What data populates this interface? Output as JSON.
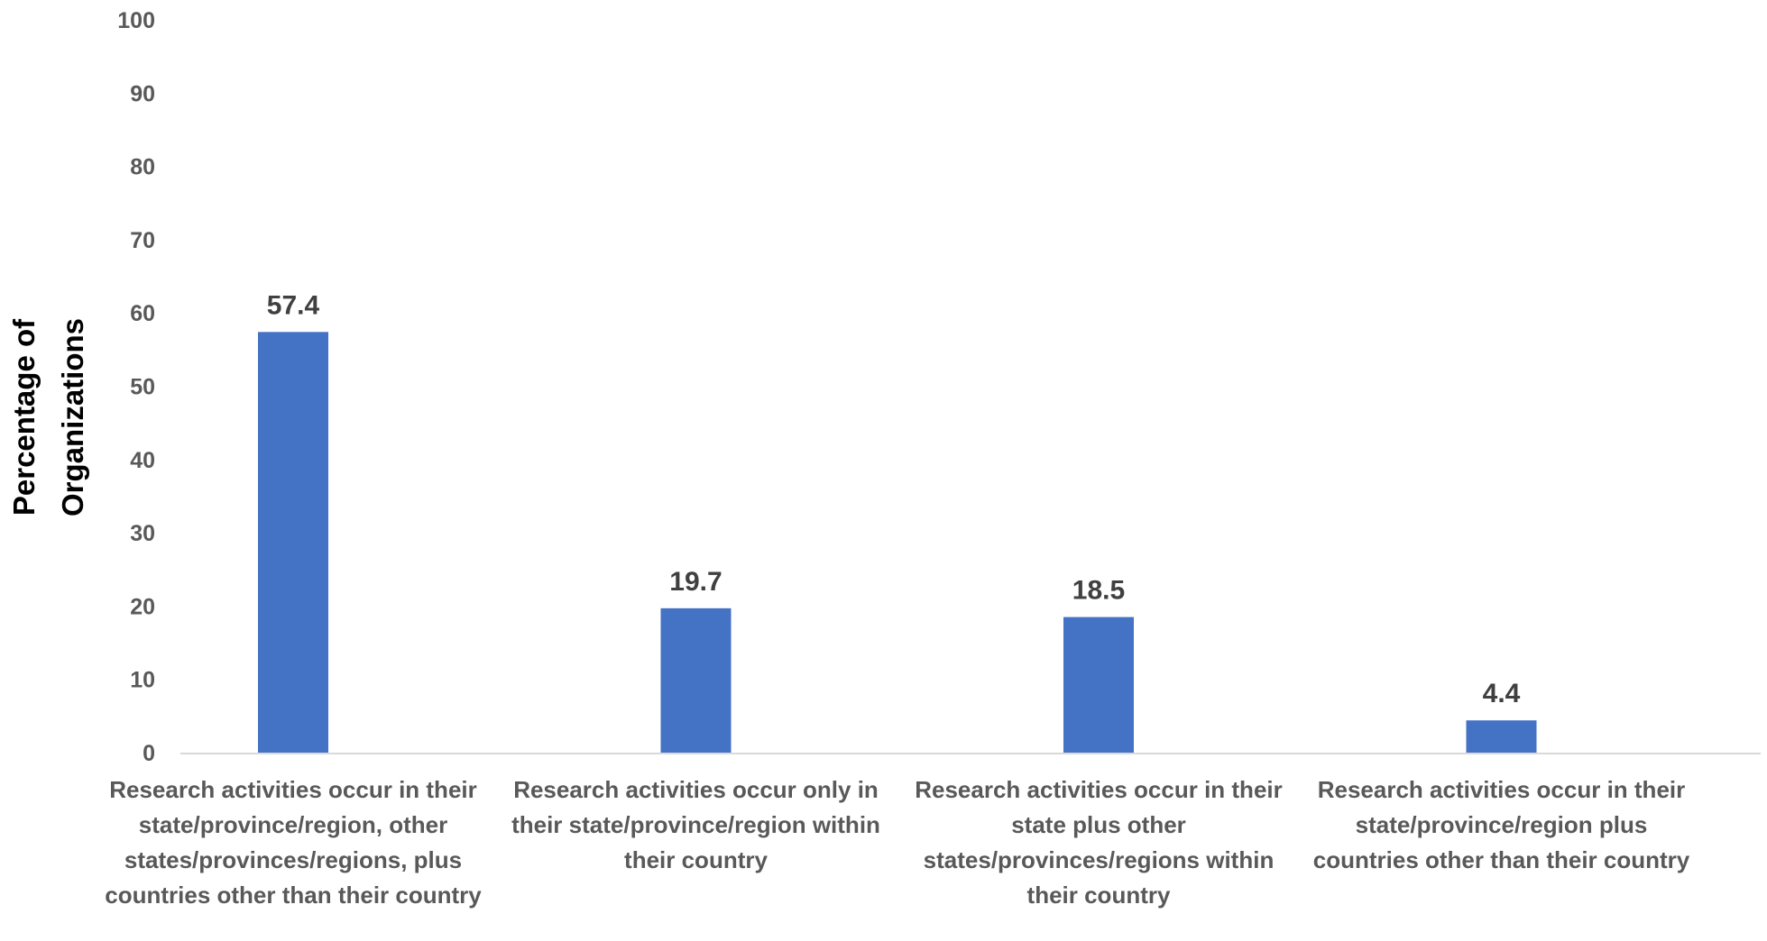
{
  "chart_data": {
    "type": "bar",
    "categories": [
      "Research activities occur in their state/province/region, other states/provinces/regions, plus countries other than their country",
      "Research activities occur only in their state/province/region within their country",
      "Research activities occur in their state plus other states/provinces/regions within their country",
      "Research activities occur in their state/province/region plus countries other than their country"
    ],
    "values": [
      57.4,
      19.7,
      18.5,
      4.4
    ],
    "data_labels": [
      "57.4",
      "19.7",
      "18.5",
      "4.4"
    ],
    "title": "",
    "xlabel": "",
    "ylabel": [
      "Percentage of",
      "Organizations"
    ],
    "ylim": [
      0,
      100
    ],
    "yticks": [
      0,
      10,
      20,
      30,
      40,
      50,
      60,
      70,
      80,
      90,
      100
    ],
    "grid": false,
    "legend": "none",
    "bar_color": "#4472C4",
    "axis_color": "#D9D9D9",
    "tick_color": "#595959",
    "data_label_color": "#404040"
  }
}
